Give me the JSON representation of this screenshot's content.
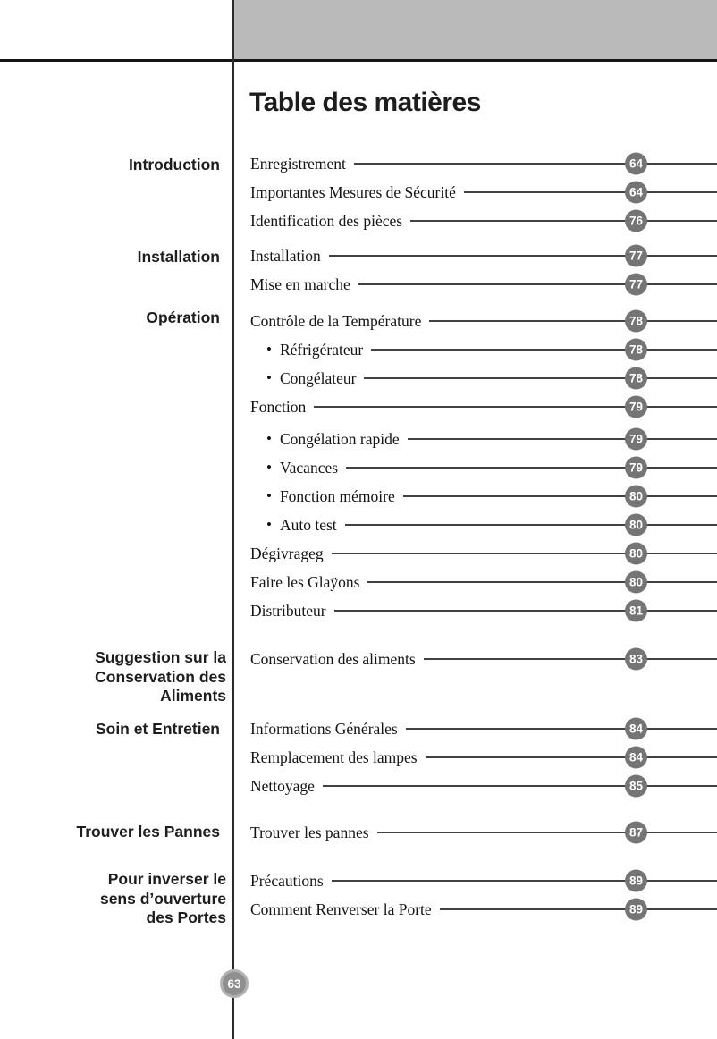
{
  "page": {
    "title": "Table des matières",
    "page_number": "63"
  },
  "colors": {
    "banner_gray": "#bababa",
    "badge_gray": "#757575",
    "page_badge_gray": "#8f8f8f",
    "leader_line": "#414141"
  },
  "sidebar": {
    "sections": [
      {
        "label": "Introduction"
      },
      {
        "label": "Installation"
      },
      {
        "label": "Opération"
      },
      {
        "label": "Suggestion sur la\nConservation des\nAliments"
      },
      {
        "label": "Soin et Entretien"
      },
      {
        "label": "Trouver les Pannes"
      },
      {
        "label": "Pour inverser le\nsens d’ouverture\ndes Portes"
      }
    ]
  },
  "toc": {
    "groups": [
      {
        "section": "Introduction",
        "entries": [
          {
            "label": "Enregistrement",
            "page": "64"
          },
          {
            "label": "Importantes Mesures de Sécurité",
            "page": "64"
          },
          {
            "label": "Identification des pièces",
            "page": "76"
          }
        ]
      },
      {
        "section": "Installation",
        "entries": [
          {
            "label": "Installation",
            "page": "77"
          },
          {
            "label": "Mise en marche",
            "page": "77"
          }
        ]
      },
      {
        "section": "Opération",
        "entries": [
          {
            "label": "Contrôle de la Température",
            "page": "78"
          },
          {
            "label": "Réfrigérateur",
            "page": "78"
          },
          {
            "label": "Congélateur",
            "page": "78"
          },
          {
            "label": "Fonction",
            "page": "79"
          },
          {
            "label": "Congélation rapide",
            "page": "79"
          },
          {
            "label": "Vacances",
            "page": "79"
          },
          {
            "label": "Fonction mémoire",
            "page": "80"
          },
          {
            "label": "Auto test",
            "page": "80"
          },
          {
            "label": "Dégivrageg",
            "page": "80"
          },
          {
            "label": "Faire les Glaÿons",
            "page": "80"
          },
          {
            "label": "Distributeur",
            "page": "81"
          }
        ]
      },
      {
        "section": "Suggestion sur la Conservation des Aliments",
        "entries": [
          {
            "label": "Conservation des aliments",
            "page": "83"
          }
        ]
      },
      {
        "section": "Soin et Entretien",
        "entries": [
          {
            "label": "Informations Générales",
            "page": "84"
          },
          {
            "label": "Remplacement des lampes",
            "page": "84"
          },
          {
            "label": "Nettoyage",
            "page": "85"
          }
        ]
      },
      {
        "section": "Trouver les Pannes",
        "entries": [
          {
            "label": "Trouver les pannes",
            "page": "87"
          }
        ]
      },
      {
        "section": "Pour inverser le sens d’ouverture des Portes",
        "entries": [
          {
            "label": "Précautions",
            "page": "89"
          },
          {
            "label": "Comment Renverser la Porte",
            "page": "89"
          }
        ]
      }
    ]
  }
}
